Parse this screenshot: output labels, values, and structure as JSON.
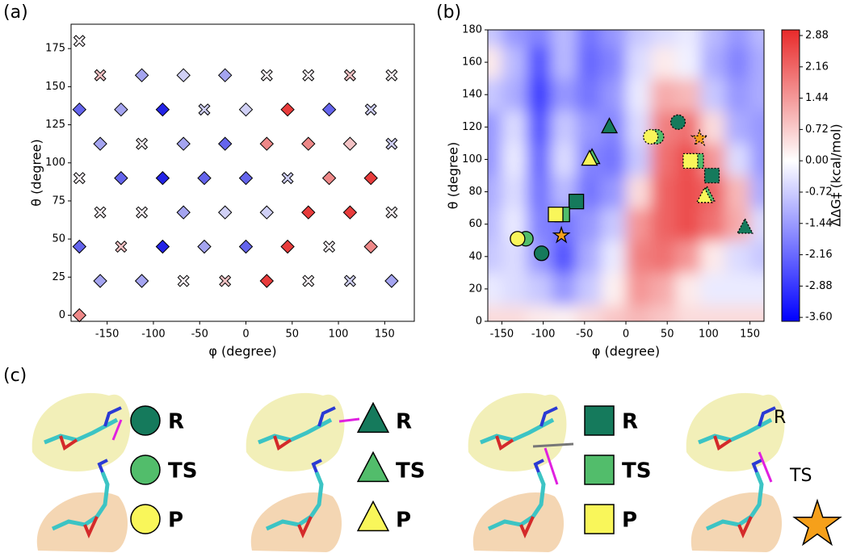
{
  "chart_data": [
    {
      "type": "scatter",
      "panel_label": "(a)",
      "x_label": "φ (degree)",
      "y_label": "θ (degree)",
      "xlim": [
        -189,
        182
      ],
      "ylim": [
        -4,
        191
      ],
      "xticks": [
        -150,
        -100,
        -50,
        0,
        50,
        100,
        150
      ],
      "yticks": [
        0,
        25,
        50,
        75,
        100,
        125,
        150,
        175
      ],
      "x": [
        -157.5,
        -112.5,
        -67.5,
        -22.5,
        22.5,
        67.5,
        112.5,
        157.5,
        -180,
        -135,
        -90,
        -45,
        0,
        45,
        90,
        135,
        -157.5,
        -112.5,
        -67.5,
        -22.5,
        22.5,
        67.5,
        112.5,
        157.5,
        -180,
        -135,
        -90,
        -45,
        0,
        45,
        90,
        135,
        -157.5,
        -112.5,
        -67.5,
        -22.5,
        22.5,
        67.5,
        112.5,
        157.5,
        -180,
        -135,
        -90,
        -45,
        0,
        45,
        90,
        135,
        -157.5,
        -112.5,
        -67.5,
        -22.5,
        22.5,
        67.5,
        112.5,
        157.5,
        -180,
        -180
      ],
      "y": [
        157.5,
        157.5,
        157.5,
        157.5,
        157.5,
        157.5,
        157.5,
        157.5,
        135,
        135,
        135,
        135,
        135,
        135,
        135,
        135,
        112.5,
        112.5,
        112.5,
        112.5,
        112.5,
        112.5,
        112.5,
        112.5,
        90,
        90,
        90,
        90,
        90,
        90,
        90,
        90,
        67.5,
        67.5,
        67.5,
        67.5,
        67.5,
        67.5,
        67.5,
        67.5,
        45,
        45,
        45,
        45,
        45,
        45,
        45,
        45,
        22.5,
        22.5,
        22.5,
        22.5,
        22.5,
        22.5,
        22.5,
        22.5,
        180,
        0
      ],
      "markers": [
        "X",
        "D",
        "D",
        "D",
        "X",
        "X",
        "X",
        "X",
        "D",
        "D",
        "D",
        "X",
        "D",
        "D",
        "D",
        "X",
        "D",
        "X",
        "D",
        "D",
        "D",
        "D",
        "D",
        "X",
        "X",
        "D",
        "D",
        "D",
        "D",
        "X",
        "D",
        "D",
        "X",
        "X",
        "D",
        "D",
        "D",
        "D",
        "D",
        "X",
        "D",
        "X",
        "D",
        "D",
        "D",
        "D",
        "X",
        "D",
        "D",
        "D",
        "X",
        "X",
        "D",
        "X",
        "X",
        "D",
        "X",
        "D"
      ],
      "colors": [
        "#f3c2c4",
        "#a4a4f0",
        "#d0d0f6",
        "#a4a4f0",
        "#f5eef2",
        "#f5eef2",
        "#f3c2c4",
        "#f5eef2",
        "#6464ec",
        "#a4a4f0",
        "#2323e6",
        "#d0d0f6",
        "#d0d0f6",
        "#e83c3c",
        "#6464ec",
        "#d0d0f6",
        "#a4a4f0",
        "#f5eef2",
        "#a4a4f0",
        "#6464ec",
        "#ee8888",
        "#ee8888",
        "#f3c2c4",
        "#d0d0f6",
        "#f5eef2",
        "#6464ec",
        "#2323e6",
        "#6464ec",
        "#6464ec",
        "#d0d0f6",
        "#ee8888",
        "#e83c3c",
        "#f5eef2",
        "#f5eef2",
        "#a4a4f0",
        "#d0d0f6",
        "#d0d0f6",
        "#e83c3c",
        "#e83c3c",
        "#f5eef2",
        "#6464ec",
        "#f3c2c4",
        "#2323e6",
        "#a4a4f0",
        "#6464ec",
        "#e83c3c",
        "#f5eef2",
        "#ee8888",
        "#a4a4f0",
        "#a4a4f0",
        "#f5eef2",
        "#f3c2c4",
        "#e83c3c",
        "#f5eef2",
        "#d0d0f6",
        "#a4a4f0",
        "#f5eef2",
        "#ee8888"
      ]
    },
    {
      "type": "contour",
      "panel_label": "(b)",
      "x_label": "φ (degree)",
      "y_label": "θ (degree)",
      "xlim": [
        -167,
        167
      ],
      "ylim": [
        0,
        180
      ],
      "xticks": [
        -150,
        -100,
        -50,
        0,
        50,
        100,
        150
      ],
      "yticks": [
        0,
        20,
        40,
        60,
        80,
        100,
        120,
        140,
        160,
        180
      ],
      "grid_x": [
        -165,
        -135,
        -105,
        -75,
        -45,
        -15,
        15,
        45,
        75,
        105,
        135,
        165
      ],
      "grid_y": [
        0,
        20,
        40,
        60,
        80,
        100,
        120,
        140,
        160,
        180
      ],
      "z": [
        [
          0.5,
          0.5,
          0.3,
          0.2,
          0.5,
          0.8,
          1.0,
          0.8,
          0.5,
          0.5,
          0.5,
          0.5
        ],
        [
          -0.3,
          -0.5,
          -0.8,
          -1.5,
          -0.8,
          0.2,
          1.5,
          1.2,
          0.3,
          -0.3,
          -0.3,
          -0.3
        ],
        [
          -0.8,
          -0.5,
          -1.5,
          -2.5,
          -1.2,
          -0.3,
          1.8,
          2.0,
          1.5,
          0.3,
          -0.5,
          -0.8
        ],
        [
          -1.0,
          -0.3,
          -1.8,
          -2.0,
          -1.5,
          -0.8,
          1.5,
          2.2,
          2.5,
          2.0,
          1.2,
          -0.5
        ],
        [
          -1.2,
          -0.5,
          -2.0,
          -1.0,
          -2.0,
          -1.5,
          0.5,
          2.2,
          2.5,
          2.2,
          1.0,
          -1.2
        ],
        [
          -1.5,
          -0.3,
          -2.2,
          -0.5,
          -1.8,
          -2.0,
          -0.8,
          2.0,
          2.5,
          1.5,
          -0.5,
          -1.5
        ],
        [
          -1.5,
          -0.5,
          -2.5,
          -0.8,
          -1.5,
          -1.8,
          -0.5,
          1.8,
          2.0,
          0.5,
          -1.2,
          -1.5
        ],
        [
          -0.8,
          -1.2,
          -2.8,
          -1.5,
          -2.0,
          -1.5,
          -0.3,
          1.2,
          1.0,
          -0.8,
          -1.5,
          -1.2
        ],
        [
          0.3,
          -1.0,
          -2.5,
          -1.0,
          -2.2,
          -1.8,
          -0.5,
          0.3,
          -0.2,
          -1.2,
          -1.8,
          -1.2
        ],
        [
          -0.8,
          -1.5,
          -1.8,
          -1.0,
          -2.0,
          -1.5,
          -0.8,
          -0.5,
          -0.3,
          -1.0,
          -1.5,
          -1.0
        ]
      ],
      "clim": [
        -3.69,
        3.01
      ],
      "cmap": [
        "#0000ff",
        "#ffffff",
        "#e82a2a"
      ],
      "colorbar_label": "ΔΔG‡ (kcal/mol)",
      "colorbar_ticks": [
        2.88,
        2.16,
        1.44,
        0.72,
        {
          "value": 0,
          "label": "0.00"
        },
        -0.72,
        -1.44,
        -2.16,
        -2.88,
        {
          "value": -3.6,
          "label": "-3.60"
        }
      ],
      "points": [
        {
          "x": -121,
          "y": 51,
          "shape": "circle",
          "color": "#52bd6b",
          "dashed": false
        },
        {
          "x": -131,
          "y": 51,
          "shape": "circle",
          "color": "#f9f65a",
          "dashed": false
        },
        {
          "x": -102,
          "y": 42,
          "shape": "circle",
          "color": "#157a5c",
          "dashed": false
        },
        {
          "x": -60,
          "y": 74,
          "shape": "square",
          "color": "#157a5c",
          "dashed": false
        },
        {
          "x": -77,
          "y": 66,
          "shape": "square",
          "color": "#52bd6b",
          "dashed": false
        },
        {
          "x": -85,
          "y": 66,
          "shape": "square",
          "color": "#f9f65a",
          "dashed": false
        },
        {
          "x": -20,
          "y": 120,
          "shape": "triangle",
          "color": "#157a5c",
          "dashed": false
        },
        {
          "x": -41,
          "y": 101,
          "shape": "triangle",
          "color": "#52bd6b",
          "dashed": false
        },
        {
          "x": -44,
          "y": 100,
          "shape": "triangle",
          "color": "#f9f65a",
          "dashed": false
        },
        {
          "x": -78,
          "y": 53,
          "shape": "star",
          "color": "#f6a01a",
          "dashed": false
        },
        {
          "x": 37,
          "y": 114,
          "shape": "circle",
          "color": "#52bd6b",
          "dashed": true
        },
        {
          "x": 30,
          "y": 114,
          "shape": "circle",
          "color": "#f9f65a",
          "dashed": true
        },
        {
          "x": 63,
          "y": 123,
          "shape": "circle",
          "color": "#157a5c",
          "dashed": true
        },
        {
          "x": 89,
          "y": 113,
          "shape": "star",
          "color": "#f6a01a",
          "dashed": true
        },
        {
          "x": 85,
          "y": 99,
          "shape": "square",
          "color": "#52bd6b",
          "dashed": true
        },
        {
          "x": 78,
          "y": 99,
          "shape": "square",
          "color": "#f9f65a",
          "dashed": true
        },
        {
          "x": 104,
          "y": 90,
          "shape": "square",
          "color": "#157a5c",
          "dashed": true
        },
        {
          "x": 98,
          "y": 78,
          "shape": "triangle",
          "color": "#52bd6b",
          "dashed": true
        },
        {
          "x": 95,
          "y": 77,
          "shape": "triangle",
          "color": "#f9f65a",
          "dashed": true
        },
        {
          "x": 144,
          "y": 58,
          "shape": "triangle",
          "color": "#157a5c",
          "dashed": true
        }
      ]
    }
  ],
  "panel_c": {
    "label": "(c)",
    "state_colors": [
      "#157a5c",
      "#52bd6b",
      "#f9f65a"
    ],
    "legends": [
      {
        "shape": "circle",
        "items": [
          "R",
          "TS",
          "P"
        ]
      },
      {
        "shape": "triangle",
        "items": [
          "R",
          "TS",
          "P"
        ]
      },
      {
        "shape": "square",
        "items": [
          "R",
          "TS",
          "P"
        ]
      }
    ],
    "star_labels": [
      "R",
      "TS"
    ],
    "star_color": "#f6a01a"
  }
}
